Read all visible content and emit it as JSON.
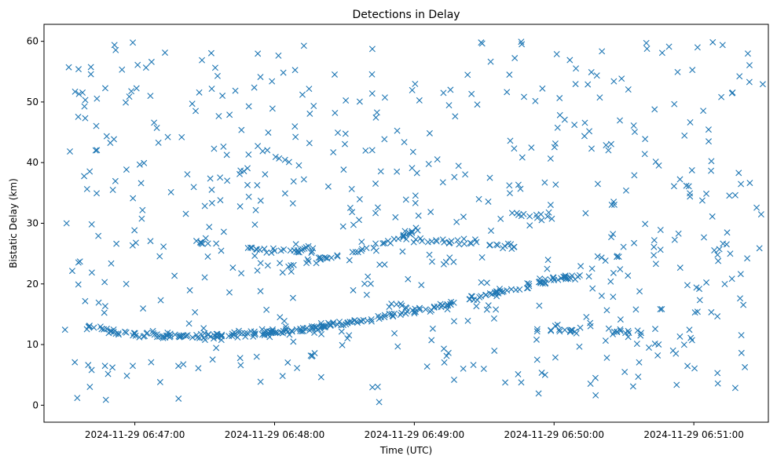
{
  "chart_data": {
    "type": "scatter",
    "title": "Detections in Delay",
    "xlabel": "Time (UTC)",
    "ylabel": "Bistatic Delay (km)",
    "marker": "x",
    "color": "#1f77b4",
    "grid": false,
    "x_range": [
      "2024-11-29 06:46:21",
      "2024-11-29 06:51:32"
    ],
    "ylim": [
      -2.8,
      62.8
    ],
    "x_ticks": [
      "2024-11-29 06:47:00",
      "2024-11-29 06:48:00",
      "2024-11-29 06:49:00",
      "2024-11-29 06:50:00",
      "2024-11-29 06:51:00"
    ],
    "y_ticks": [
      0,
      10,
      20,
      30,
      40,
      50,
      60
    ],
    "tracks": [
      {
        "points": [
          [
            "2024-11-29 06:46:39",
            13.0
          ],
          [
            "2024-11-29 06:47:00",
            11.7
          ],
          [
            "2024-11-29 06:47:25",
            11.3
          ],
          [
            "2024-11-29 06:48:00",
            12.0
          ],
          [
            "2024-11-29 06:48:30",
            13.5
          ],
          [
            "2024-11-29 06:49:00",
            15.5
          ],
          [
            "2024-11-29 06:49:30",
            18.0
          ],
          [
            "2024-11-29 06:50:00",
            20.8
          ],
          [
            "2024-11-29 06:50:13",
            21.5
          ]
        ],
        "count": 260
      },
      {
        "points": [
          [
            "2024-11-29 06:47:47",
            26.0
          ],
          [
            "2024-11-29 06:48:17",
            25.4
          ]
        ],
        "count": 24
      },
      {
        "points": [
          [
            "2024-11-29 06:48:05",
            23.0
          ],
          [
            "2024-11-29 06:48:30",
            24.8
          ],
          [
            "2024-11-29 06:48:50",
            27.0
          ],
          [
            "2024-11-29 06:49:02",
            29.2
          ]
        ],
        "count": 42
      },
      {
        "points": [
          [
            "2024-11-29 06:48:55",
            27.5
          ],
          [
            "2024-11-29 06:49:30",
            26.5
          ],
          [
            "2024-11-29 06:49:45",
            26.1
          ]
        ],
        "count": 30
      },
      {
        "points": [
          [
            "2024-11-29 06:49:40",
            31.5
          ],
          [
            "2024-11-29 06:50:02",
            31.0
          ]
        ],
        "count": 12
      },
      {
        "points": [
          [
            "2024-11-29 06:49:52",
            12.3
          ],
          [
            "2024-11-29 06:50:10",
            12.3
          ]
        ],
        "count": 14
      },
      {
        "points": [
          [
            "2024-11-29 06:50:23",
            12.2
          ],
          [
            "2024-11-29 06:50:38",
            12.0
          ]
        ],
        "count": 13
      },
      {
        "points": [
          [
            "2024-11-29 06:50:18",
            24.6
          ],
          [
            "2024-11-29 06:50:28",
            24.4
          ]
        ],
        "count": 6
      },
      {
        "points": [
          [
            "2024-11-29 06:47:25",
            27.2
          ],
          [
            "2024-11-29 06:47:32",
            26.8
          ]
        ],
        "count": 5
      },
      {
        "points": [
          [
            "2024-11-29 06:48:15",
            8.2
          ],
          [
            "2024-11-29 06:48:18",
            8.2
          ]
        ],
        "count": 4
      },
      {
        "points": [
          [
            "2024-11-29 06:48:48",
            16.5
          ],
          [
            "2024-11-29 06:48:58",
            16.0
          ]
        ],
        "count": 5
      }
    ],
    "noise": {
      "count": 560,
      "x_range": [
        "2024-11-29 06:46:30",
        "2024-11-29 06:51:30"
      ],
      "y_range": [
        0.5,
        60.0
      ]
    }
  }
}
